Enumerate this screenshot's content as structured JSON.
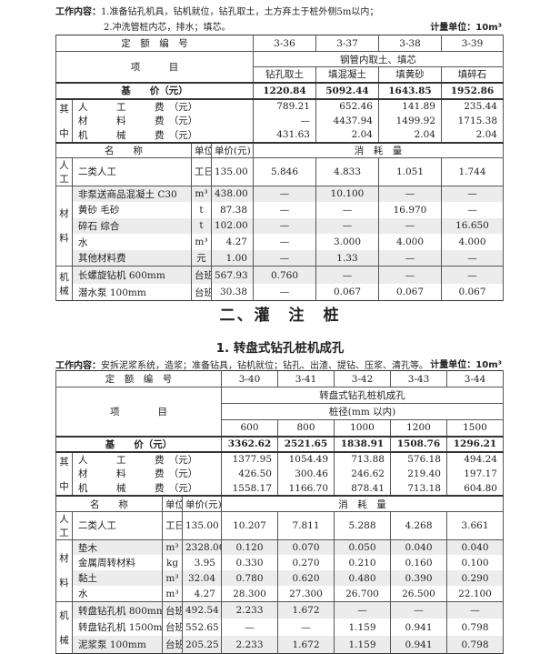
{
  "section1": {
    "work_label": "工作内容：",
    "work_line1": "1.准备钻孔机具，钻机就位，钻孔取土，土方弃土于桩外侧5m以内；",
    "work_line2": "2.冲洗管桩内芯，排水；填芯。",
    "unit_label": "计量单位：10m³",
    "table": {
      "code_label": "定　额　编　号",
      "codes": [
        "3-36",
        "3-37",
        "3-38",
        "3-39"
      ],
      "item_label": "项　　　目",
      "group_title": "钢管内取土、填芯",
      "subitems": [
        "钻孔取土",
        "填混凝土",
        "填黄砂",
        "填碎石"
      ],
      "base_price_label": "基　　价（元）",
      "base_prices": [
        "1220.84",
        "5092.44",
        "1643.85",
        "1952.86"
      ],
      "of_which_label": [
        "其",
        "中"
      ],
      "cost_rows": [
        {
          "label": "人　　　工　　　费　（元）",
          "values": [
            "789.21",
            "652.46",
            "141.89",
            "235.44"
          ]
        },
        {
          "label": "材　　　料　　　费　（元）",
          "values": [
            "—",
            "4437.94",
            "1499.92",
            "1715.38"
          ]
        },
        {
          "label": "机　　　械　　　费　（元）",
          "values": [
            "431.63",
            "2.04",
            "2.04",
            "2.04"
          ]
        }
      ],
      "name_label": "名　　称",
      "unit_col_label": "单位",
      "price_col_label": "单价(元)",
      "consumption_label": "消　耗　量",
      "groups": [
        {
          "label": "人工",
          "rows": [
            {
              "name": "二类人工",
              "unit": "工日",
              "price": "135.00",
              "values": [
                "5.846",
                "4.833",
                "1.051",
                "1.744"
              ]
            }
          ]
        },
        {
          "label": "材\n\n料",
          "rows": [
            {
              "name": "非泵送商品混凝土 C30",
              "unit": "m³",
              "price": "438.00",
              "values": [
                "—",
                "10.100",
                "—",
                "—"
              ]
            },
            {
              "name": "黄砂 毛砂",
              "unit": "t",
              "price": "87.38",
              "values": [
                "—",
                "—",
                "16.970",
                "—"
              ]
            },
            {
              "name": "碎石 综合",
              "unit": "t",
              "price": "102.00",
              "values": [
                "—",
                "—",
                "—",
                "16.650"
              ]
            },
            {
              "name": "水",
              "unit": "m³",
              "price": "4.27",
              "values": [
                "—",
                "3.000",
                "4.000",
                "4.000"
              ]
            },
            {
              "name": "其他材料费",
              "unit": "元",
              "price": "1.00",
              "values": [
                "—",
                "1.33",
                "—",
                "—"
              ]
            }
          ]
        },
        {
          "label": "机\n械",
          "rows": [
            {
              "name": "长螺旋钻机 600mm",
              "unit": "台班",
              "price": "567.93",
              "values": [
                "0.760",
                "—",
                "—",
                "—"
              ]
            },
            {
              "name": "潜水泵 100mm",
              "unit": "台班",
              "price": "30.38",
              "values": [
                "—",
                "0.067",
                "0.067",
                "0.067"
              ]
            }
          ]
        }
      ]
    }
  },
  "section2": {
    "title": "二、灌　注　桩",
    "subtitle": "1. 转盘式钻孔桩机成孔",
    "work_label": "工作内容：",
    "work_line1": "安拆泥浆系统，造浆；准备钻具，钻机就位；钻孔、出渣、提钻、压浆、清孔等。",
    "unit_label": "计量单位：10m³",
    "table": {
      "code_label": "定　额　编　号",
      "codes": [
        "3-40",
        "3-41",
        "3-42",
        "3-43",
        "3-44"
      ],
      "item_label": "项　　　　目",
      "group_title": "转盘式钻孔桩机成孔",
      "group_subtitle": "桩径(mm 以内)",
      "subitems": [
        "600",
        "800",
        "1000",
        "1200",
        "1500"
      ],
      "base_price_label": "基　　价（元）",
      "base_prices": [
        "3362.62",
        "2521.65",
        "1838.91",
        "1508.76",
        "1296.21"
      ],
      "of_which_label": [
        "其",
        "中"
      ],
      "cost_rows": [
        {
          "label": "人　　　工　　　费　（元）",
          "values": [
            "1377.95",
            "1054.49",
            "713.88",
            "576.18",
            "494.24"
          ]
        },
        {
          "label": "材　　　料　　　费　（元）",
          "values": [
            "426.50",
            "300.46",
            "246.62",
            "219.40",
            "197.17"
          ]
        },
        {
          "label": "机　　　械　　　费　（元）",
          "values": [
            "1558.17",
            "1166.70",
            "878.41",
            "713.18",
            "604.80"
          ]
        }
      ],
      "name_label": "名　　称",
      "unit_col_label": "单位",
      "price_col_label": "单价(元)",
      "consumption_label": "消　耗　量",
      "groups": [
        {
          "label": "人工",
          "rows": [
            {
              "name": "二类人工",
              "unit": "工日",
              "price": "135.00",
              "values": [
                "10.207",
                "7.811",
                "5.288",
                "4.268",
                "3.661"
              ]
            }
          ]
        },
        {
          "label": "材\n\n料",
          "rows": [
            {
              "name": "垫木",
              "unit": "m³",
              "price": "2328.00",
              "values": [
                "0.120",
                "0.070",
                "0.050",
                "0.040",
                "0.040"
              ]
            },
            {
              "name": "金属周转材料",
              "unit": "kg",
              "price": "3.95",
              "values": [
                "0.330",
                "0.270",
                "0.210",
                "0.160",
                "0.100"
              ]
            },
            {
              "name": "黏土",
              "unit": "m³",
              "price": "32.04",
              "values": [
                "0.780",
                "0.620",
                "0.480",
                "0.390",
                "0.290"
              ]
            },
            {
              "name": "水",
              "unit": "m³",
              "price": "4.27",
              "values": [
                "28.300",
                "27.300",
                "26.700",
                "26.500",
                "22.100"
              ]
            }
          ]
        },
        {
          "label": "机\n\n械",
          "rows": [
            {
              "name": "转盘钻孔机 800mm",
              "unit": "台班",
              "price": "492.54",
              "values": [
                "2.233",
                "1.672",
                "—",
                "—",
                "—"
              ]
            },
            {
              "name": "转盘钻孔机 1500mm",
              "unit": "台班",
              "price": "552.65",
              "values": [
                "—",
                "—",
                "1.159",
                "0.941",
                "0.798"
              ]
            },
            {
              "name": "泥浆泵 100mm",
              "unit": "台班",
              "price": "205.25",
              "values": [
                "2.233",
                "1.672",
                "1.159",
                "0.941",
                "0.798"
              ]
            }
          ]
        }
      ]
    }
  }
}
